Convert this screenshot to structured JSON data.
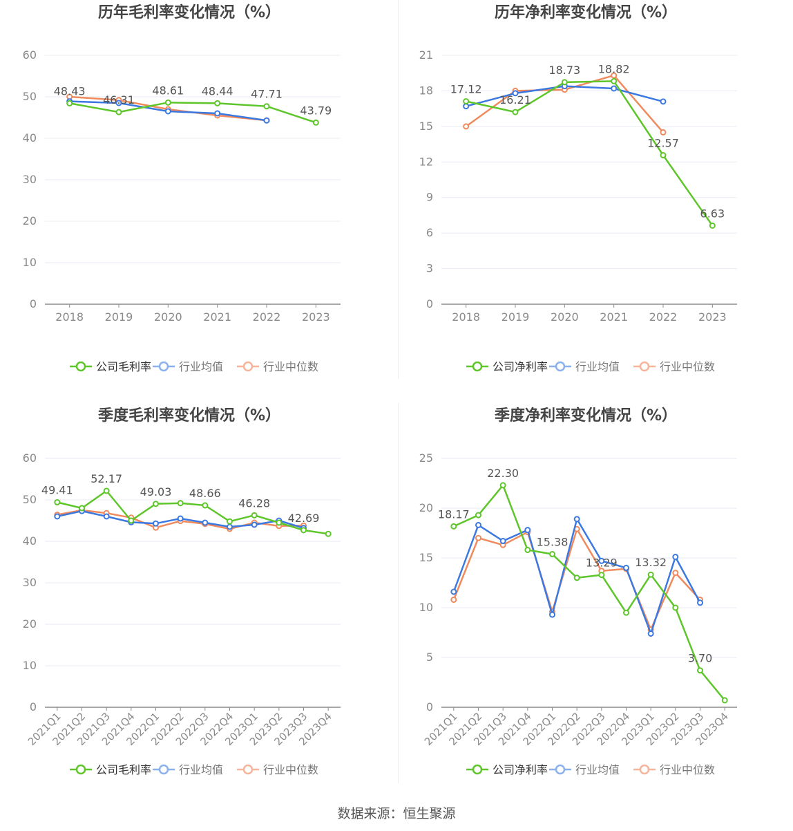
{
  "source_text": "数据来源：恒生聚源",
  "colors": {
    "company": "#5ec52a",
    "avg": "#3b78e0",
    "median": "#f08a5d",
    "grid": "#e8ebf3",
    "axis": "#8c8c8c",
    "tick": "#8a8a8a",
    "title": "#444444",
    "label": "#555555"
  },
  "chart_data": [
    {
      "type": "line",
      "title": "历年毛利率变化情况（%）",
      "categories": [
        "2018",
        "2019",
        "2020",
        "2021",
        "2022",
        "2023"
      ],
      "ylim": [
        0,
        60
      ],
      "yticks": [
        0,
        10,
        20,
        30,
        40,
        50,
        60
      ],
      "grid": true,
      "legend_position": "bottom",
      "series": [
        {
          "name": "公司毛利率",
          "values": [
            48.43,
            46.31,
            48.61,
            48.44,
            47.71,
            43.79
          ]
        },
        {
          "name": "行业均值",
          "values": [
            48.9,
            48.5,
            46.5,
            46.0,
            44.3,
            null
          ]
        },
        {
          "name": "行业中位数",
          "values": [
            50.0,
            49.2,
            47.0,
            45.5,
            44.3,
            null
          ]
        }
      ],
      "data_labels": [
        "48.43",
        "46.31",
        "48.61",
        "48.44",
        "47.71",
        "43.79"
      ]
    },
    {
      "type": "line",
      "title": "历年净利率变化情况（%）",
      "categories": [
        "2018",
        "2019",
        "2020",
        "2021",
        "2022",
        "2023"
      ],
      "ylim": [
        0,
        21
      ],
      "yticks": [
        0,
        3,
        6,
        9,
        12,
        15,
        18,
        21
      ],
      "grid": true,
      "legend_position": "bottom",
      "series": [
        {
          "name": "公司净利率",
          "values": [
            17.12,
            16.21,
            18.73,
            18.82,
            12.57,
            6.63
          ]
        },
        {
          "name": "行业均值",
          "values": [
            16.7,
            17.8,
            18.4,
            18.2,
            17.1,
            null
          ]
        },
        {
          "name": "行业中位数",
          "values": [
            15.0,
            18.0,
            18.1,
            19.3,
            14.5,
            null
          ]
        }
      ],
      "data_labels": [
        "17.12",
        "16.21",
        "18.73",
        "18.82",
        "12.57",
        "6.63"
      ]
    },
    {
      "type": "line",
      "title": "季度毛利率变化情况（%）",
      "categories": [
        "2021Q1",
        "2021Q2",
        "2021Q3",
        "2021Q4",
        "2022Q1",
        "2022Q2",
        "2022Q3",
        "2022Q4",
        "2023Q1",
        "2023Q2",
        "2023Q3",
        "2023Q4"
      ],
      "ylim": [
        0,
        60
      ],
      "yticks": [
        0,
        10,
        20,
        30,
        40,
        50,
        60
      ],
      "grid": true,
      "legend_position": "bottom",
      "series": [
        {
          "name": "公司毛利率",
          "values": [
            49.41,
            48.0,
            52.17,
            45.0,
            49.03,
            49.2,
            48.66,
            44.8,
            46.28,
            44.5,
            42.69,
            41.8
          ]
        },
        {
          "name": "行业均值",
          "values": [
            46.0,
            47.3,
            46.0,
            44.6,
            44.3,
            45.5,
            44.5,
            43.5,
            44.0,
            45.0,
            43.2,
            null
          ]
        },
        {
          "name": "行业中位数",
          "values": [
            46.4,
            47.5,
            46.8,
            45.7,
            43.3,
            44.9,
            44.2,
            43.0,
            44.5,
            43.7,
            43.8,
            null
          ]
        }
      ],
      "data_labels": [
        "49.41",
        "",
        "52.17",
        "",
        "49.03",
        "",
        "48.66",
        "",
        "46.28",
        "",
        "42.69",
        ""
      ]
    },
    {
      "type": "line",
      "title": "季度净利率变化情况（%）",
      "categories": [
        "2021Q1",
        "2021Q2",
        "2021Q3",
        "2021Q4",
        "2022Q1",
        "2022Q2",
        "2022Q3",
        "2022Q4",
        "2023Q1",
        "2023Q2",
        "2023Q3",
        "2023Q4"
      ],
      "ylim": [
        0,
        25
      ],
      "yticks": [
        0,
        5,
        10,
        15,
        20,
        25
      ],
      "grid": true,
      "legend_position": "bottom",
      "series": [
        {
          "name": "公司净利率",
          "values": [
            18.17,
            19.3,
            22.3,
            15.8,
            15.38,
            13.0,
            13.29,
            9.5,
            13.32,
            10.0,
            3.7,
            0.7
          ]
        },
        {
          "name": "行业均值",
          "values": [
            11.6,
            18.3,
            16.7,
            17.8,
            9.3,
            18.9,
            14.7,
            14.0,
            7.4,
            15.1,
            10.5,
            null
          ]
        },
        {
          "name": "行业中位数",
          "values": [
            10.8,
            17.0,
            16.3,
            17.6,
            9.6,
            17.9,
            13.7,
            13.9,
            7.8,
            13.5,
            10.8,
            null
          ]
        }
      ],
      "data_labels": [
        "18.17",
        "",
        "22.30",
        "",
        "15.38",
        "",
        "13.29",
        "",
        "13.32",
        "",
        "3.70",
        ""
      ]
    }
  ]
}
